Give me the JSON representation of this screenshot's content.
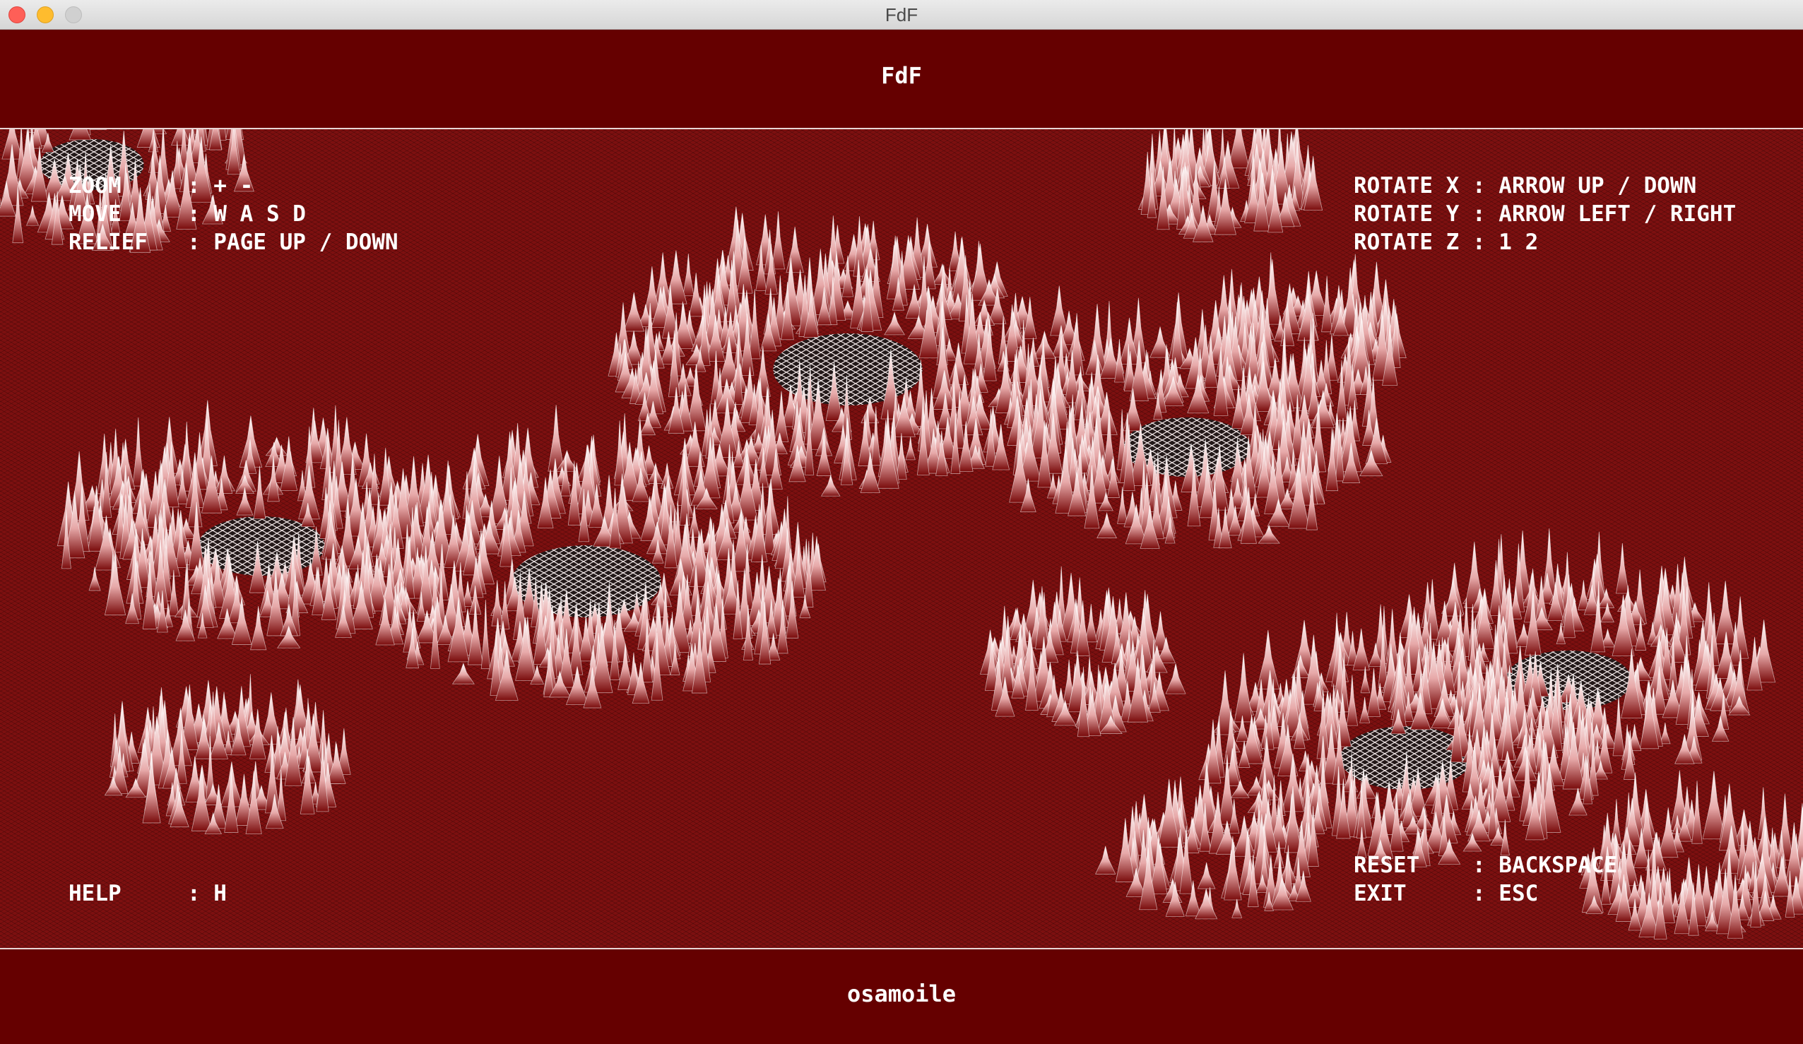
{
  "window": {
    "title": "FdF"
  },
  "header": {
    "title": "FdF"
  },
  "footer": {
    "author": "osamoile"
  },
  "controls": {
    "zoom": "ZOOM     : + -",
    "move": "MOVE     : W A S D",
    "relief": "RELIEF   : PAGE UP / DOWN",
    "rotate_x": "ROTATE X : ARROW UP / DOWN",
    "rotate_y": "ROTATE Y : ARROW LEFT / RIGHT",
    "rotate_z": "ROTATE Z : 1 2",
    "help": "HELP     : H",
    "reset": "RESET    : BACKSPACE",
    "exit": "EXIT     : ESC"
  },
  "colors": {
    "background": "#650000",
    "viewport": "#7d1010",
    "wire_peak": "#ffffff",
    "wire_base": "#8a1515",
    "text": "#ffffff"
  }
}
